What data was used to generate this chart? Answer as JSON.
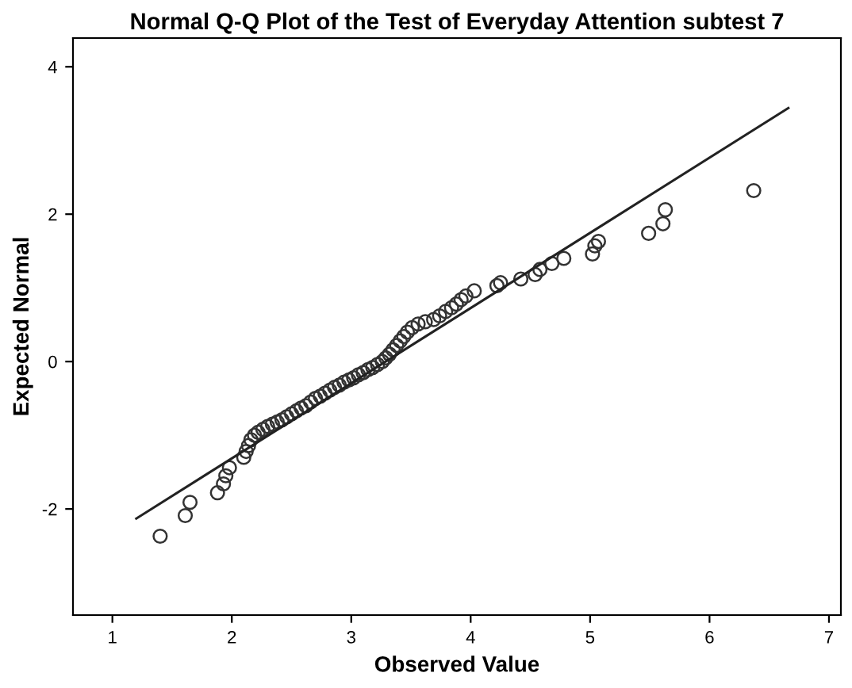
{
  "chart_data": {
    "type": "scatter",
    "title": "Normal Q-Q Plot of the Test of Everyday Attention subtest 7",
    "xlabel": "Observed Value",
    "ylabel": "Expected Normal",
    "marker": "circle",
    "grid": false,
    "xlim": [
      0.67,
      7.1
    ],
    "ylim": [
      -3.44,
      4.39
    ],
    "xticks": [
      1,
      2,
      3,
      4,
      5,
      6,
      7
    ],
    "yticks": [
      -2,
      0,
      2,
      4
    ],
    "series": [
      {
        "color": "#333333",
        "x": [
          1.4,
          1.61,
          1.65,
          1.88,
          1.93,
          1.95,
          1.98,
          2.1,
          2.12,
          2.14,
          2.16,
          2.19,
          2.22,
          2.26,
          2.3,
          2.34,
          2.38,
          2.42,
          2.46,
          2.5,
          2.54,
          2.58,
          2.62,
          2.66,
          2.7,
          2.74,
          2.78,
          2.82,
          2.86,
          2.9,
          2.94,
          2.98,
          3.02,
          3.06,
          3.1,
          3.14,
          3.18,
          3.22,
          3.26,
          3.29,
          3.32,
          3.35,
          3.38,
          3.41,
          3.44,
          3.47,
          3.51,
          3.56,
          3.62,
          3.69,
          3.74,
          3.79,
          3.84,
          3.88,
          3.92,
          3.96,
          4.03,
          4.22,
          4.25,
          4.42,
          4.54,
          4.58,
          4.68,
          4.78,
          5.02,
          5.04,
          5.07,
          5.49,
          5.61,
          5.63,
          6.37
        ],
        "values": [
          -2.37,
          -2.09,
          -1.91,
          -1.78,
          -1.66,
          -1.55,
          -1.44,
          -1.3,
          -1.22,
          -1.14,
          -1.06,
          -1.0,
          -0.96,
          -0.92,
          -0.88,
          -0.85,
          -0.82,
          -0.79,
          -0.75,
          -0.71,
          -0.67,
          -0.63,
          -0.6,
          -0.55,
          -0.5,
          -0.47,
          -0.43,
          -0.39,
          -0.35,
          -0.32,
          -0.28,
          -0.25,
          -0.22,
          -0.18,
          -0.15,
          -0.11,
          -0.08,
          -0.04,
          0.0,
          0.05,
          0.1,
          0.16,
          0.22,
          0.28,
          0.34,
          0.4,
          0.46,
          0.51,
          0.54,
          0.57,
          0.62,
          0.68,
          0.73,
          0.78,
          0.84,
          0.89,
          0.96,
          1.03,
          1.07,
          1.12,
          1.18,
          1.25,
          1.33,
          1.4,
          1.46,
          1.57,
          1.63,
          1.74,
          1.87,
          2.06,
          2.32
        ]
      },
      {
        "type": "line",
        "color": "#222222",
        "marker": "none",
        "x": [
          1.2,
          6.66
        ],
        "values": [
          -2.13,
          3.44
        ]
      }
    ]
  }
}
